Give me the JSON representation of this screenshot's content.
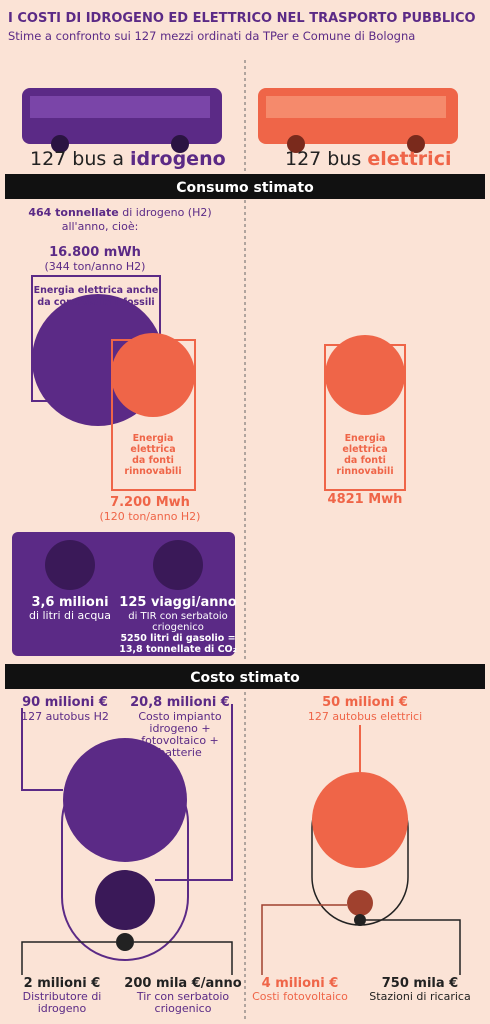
{
  "header": {
    "title": "I COSTI DI IDROGENO ED ELETTRICO NEL TRASPORTO PUBBLICO",
    "subtitle": "Stime a confronto sui 127 mezzi ordinati da TPer e Comune di Bologna"
  },
  "buses": {
    "left": {
      "prefix": "127 bus a",
      "highlight": "idrogeno"
    },
    "right": {
      "prefix": "127 bus",
      "highlight": "elettrici"
    }
  },
  "consumption": {
    "title": "Consumo stimato",
    "total": {
      "bold": "464 tonnellate",
      "rest": "di idrogeno (H2)",
      "line2": "all'anno, cioè:"
    },
    "fossil": {
      "value": "16.800 mWh",
      "note": "(344 ton/anno H2)",
      "label": [
        "Energia elettrica anche",
        "da combustibili fossili"
      ]
    },
    "renewable_h2": {
      "label": [
        "Energia",
        "elettrica",
        "da fonti",
        "rinnovabili"
      ],
      "value": "7.200 Mwh",
      "note": "(120 ton/anno H2)"
    },
    "renewable_el": {
      "label": [
        "Energia",
        "elettrica",
        "da fonti",
        "rinnovabili"
      ],
      "value": "4821 Mwh"
    },
    "water": {
      "value": "3,6 milioni",
      "label": "di litri di acqua"
    },
    "trucks": {
      "value": "125 viaggi/anno",
      "label": [
        "di TIR con serbatoio",
        "criogenico"
      ],
      "note": [
        "5250 litri di gasolio =",
        "13,8 tonnellate di CO₂"
      ]
    }
  },
  "cost": {
    "title": "Costo stimato",
    "h2_buses": {
      "value": "90 milioni €",
      "label": "127 autobus H2"
    },
    "h2_plant": {
      "value": "20,8 milioni €",
      "label": [
        "Costo impianto",
        "idrogeno +",
        "fotovoltaico +",
        "batterie"
      ]
    },
    "h2_dist": {
      "value": "2 milioni €",
      "label": [
        "Distributore di",
        "idrogeno"
      ]
    },
    "h2_tir": {
      "value": "200 mila €/anno",
      "label": [
        "Tir con serbatoio",
        "criogenico"
      ]
    },
    "el_buses": {
      "value": "50 milioni €",
      "label": "127 autobus elettrici"
    },
    "el_pv": {
      "value": "4 milioni €",
      "label": "Costi fotovoltaico"
    },
    "el_charge": {
      "value": "750 mila €",
      "label": "Stazioni di ricarica"
    }
  }
}
